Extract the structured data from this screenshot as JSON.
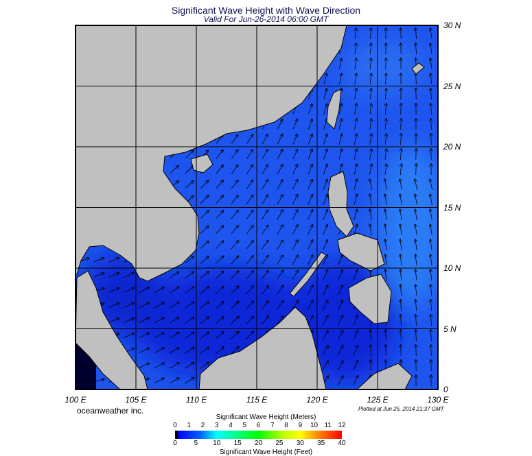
{
  "title": "Significant Wave Height with Wave Direction",
  "subtitle": "Valid For Jun-26-2014 06:00 GMT",
  "lon_labels": [
    "100 E",
    "105 E",
    "110 E",
    "115 E",
    "120 E",
    "125 E",
    "130 E"
  ],
  "lat_labels": [
    "30 N",
    "25 N",
    "20 N",
    "15 N",
    "10 N",
    "5 N",
    "0"
  ],
  "credit": "oceanweather inc.",
  "plotted": "Plotted at Jun 25, 2014 21:37 GMT",
  "colorbar": {
    "title_meters": "Significant Wave Height (Meters)",
    "title_feet": "Significant Wave Height (Feet)",
    "meters": [
      "0",
      "1",
      "2",
      "3",
      "4",
      "5",
      "6",
      "7",
      "8",
      "9",
      "10",
      "11",
      "12"
    ],
    "feet": [
      "0",
      "5",
      "10",
      "15",
      "20",
      "25",
      "30",
      "35",
      "40"
    ]
  },
  "colors": {
    "land": "#c0c0c0",
    "sea": "#1e55ee",
    "sea_dark": "#0a28d8",
    "sea_light": "#2c78f4",
    "deep": "#000030"
  }
}
